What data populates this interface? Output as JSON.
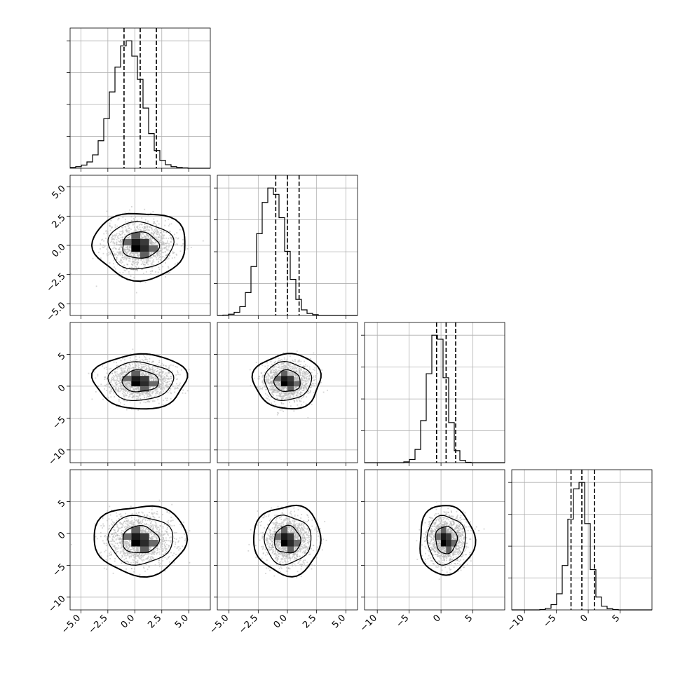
{
  "chart_data": {
    "type": "corner",
    "title": "",
    "grid": true,
    "parameters": [
      {
        "name": "",
        "range": [
          -6,
          7
        ],
        "mean": 0.5,
        "sd": 1.5,
        "quantiles": [
          -1.0,
          0.5,
          2.0
        ],
        "ticks": [
          -5.0,
          -2.5,
          0.0,
          2.5,
          5.0
        ],
        "tick_labels": [
          "−5.0",
          "−2.5",
          "0.0",
          "2.5",
          "5.0"
        ]
      },
      {
        "name": "",
        "range": [
          -6,
          6
        ],
        "mean": 0.0,
        "sd": 1.0,
        "quantiles": [
          -1.0,
          0.0,
          1.0
        ],
        "ticks": [
          -5.0,
          -2.5,
          0.0,
          2.5,
          5.0
        ],
        "tick_labels": [
          "−5.0",
          "−2.5",
          "0.0",
          "2.5",
          "5.0"
        ]
      },
      {
        "name": "",
        "range": [
          -12,
          10
        ],
        "mean": 0.8,
        "sd": 1.5,
        "quantiles": [
          -0.7,
          0.8,
          2.3
        ],
        "ticks": [
          -10,
          -5,
          0,
          5
        ],
        "tick_labels": [
          "−10",
          "−5",
          "0",
          "5"
        ]
      },
      {
        "name": "",
        "range": [
          -12,
          10
        ],
        "mean": -1.0,
        "sd": 1.9,
        "quantiles": [
          -2.7,
          -1.0,
          1.0
        ],
        "ticks": [
          -10,
          -5,
          0,
          5
        ],
        "tick_labels": [
          "−10",
          "−5",
          "0",
          "5"
        ]
      }
    ],
    "histograms": [
      {
        "parameter": 0,
        "bins": 25,
        "counts": [
          2,
          4,
          8,
          16,
          34,
          70,
          126,
          194,
          257,
          311,
          324,
          285,
          226,
          153,
          88,
          45,
          20,
          9,
          4,
          2,
          1,
          0,
          0,
          0,
          0
        ]
      },
      {
        "parameter": 1,
        "bins": 25,
        "counts": [
          0,
          1,
          3,
          8,
          22,
          57,
          122,
          204,
          282,
          318,
          302,
          244,
          160,
          90,
          40,
          14,
          5,
          2,
          0,
          0,
          0,
          0,
          0,
          0,
          0
        ]
      },
      {
        "parameter": 2,
        "bins": 25,
        "counts": [
          0,
          0,
          0,
          0,
          0,
          0,
          0,
          2,
          8,
          33,
          105,
          222,
          318,
          308,
          212,
          100,
          30,
          6,
          1,
          0,
          0,
          0,
          0,
          0,
          0
        ]
      },
      {
        "parameter": 3,
        "bins": 25,
        "counts": [
          0,
          0,
          0,
          0,
          0,
          1,
          4,
          13,
          40,
          110,
          225,
          300,
          316,
          214,
          100,
          32,
          9,
          3,
          1,
          0,
          0,
          0,
          0,
          0,
          0
        ]
      }
    ],
    "contour_levels": [
      0.9,
      1.6,
      2.3
    ],
    "scatter_seed": 7
  }
}
